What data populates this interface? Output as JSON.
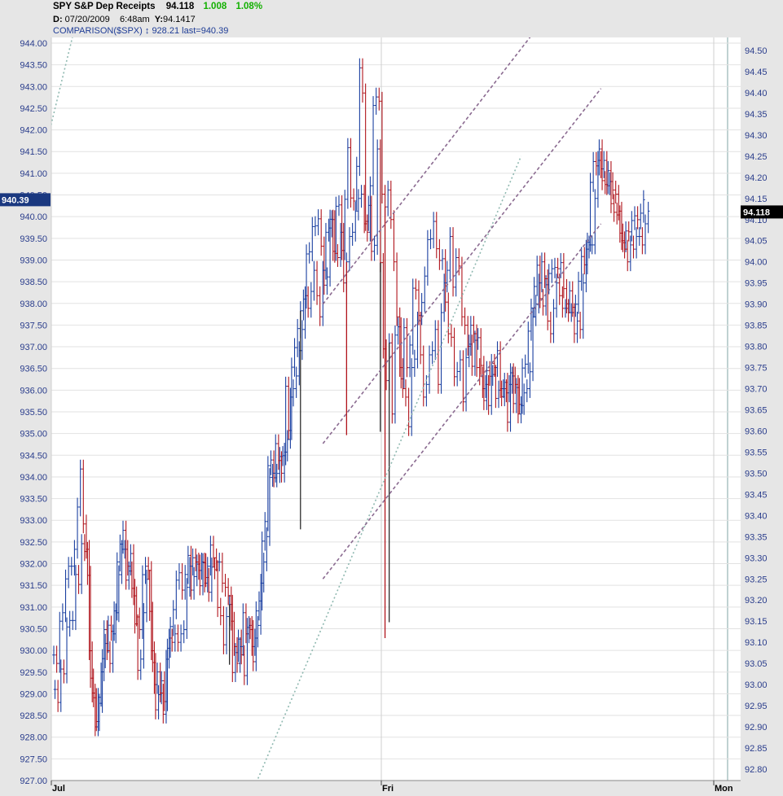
{
  "header": {
    "symbol": "SPY S&P Dep Receipts",
    "last": "94.118",
    "change": "1.008",
    "change_pct": "1.08%",
    "date_label": "D:",
    "date": "07/20/2009",
    "time": "6:48am",
    "y_label": "Y:",
    "y_value": "94.1417",
    "comparison": "COMPARISON($SPX)",
    "comparison_value": "928.21",
    "comparison_last": "last=940.39"
  },
  "left_marker": "940.39",
  "right_marker": "94.118",
  "colors": {
    "background": "#ffffff",
    "panel": "#e6e6e6",
    "grid": "#e2e2e2",
    "up_bar": "#1a3fa0",
    "down_bar": "#b0141c",
    "spx_bar": "#1a1a1a",
    "channel": "#8a6a90",
    "trend": "#8fb8b0",
    "marker_left_bg": "#1a3880",
    "marker_right_bg": "#000000"
  },
  "chart_data": {
    "type": "bar",
    "subtype": "ohlc",
    "left_axis": {
      "label": "$SPX",
      "range": [
        927.0,
        944.0
      ],
      "ticks": [
        "944.00",
        "943.50",
        "943.00",
        "942.50",
        "942.00",
        "941.50",
        "941.00",
        "940.50",
        "940.00",
        "939.50",
        "939.00",
        "938.50",
        "938.00",
        "937.50",
        "937.00",
        "936.50",
        "936.00",
        "935.50",
        "935.00",
        "934.50",
        "934.00",
        "933.50",
        "933.00",
        "932.50",
        "932.00",
        "931.50",
        "931.00",
        "930.50",
        "930.00",
        "929.50",
        "929.00",
        "928.50",
        "928.00",
        "927.50",
        "927.00"
      ]
    },
    "right_axis": {
      "label": "SPY",
      "range": [
        92.78,
        94.52
      ],
      "ticks": [
        "94.50",
        "94.45",
        "94.40",
        "94.35",
        "94.30",
        "94.25",
        "94.20",
        "94.15",
        "94.10",
        "94.05",
        "94.00",
        "93.95",
        "93.90",
        "93.85",
        "93.80",
        "93.75",
        "93.70",
        "93.65",
        "93.60",
        "93.55",
        "93.50",
        "93.45",
        "93.40",
        "93.35",
        "93.30",
        "93.25",
        "93.20",
        "93.15",
        "93.10",
        "93.05",
        "93.00",
        "92.95",
        "92.90",
        "92.85",
        "92.80"
      ]
    },
    "x_axis": {
      "ticks": [
        "Jul",
        "Fri",
        "Mon"
      ],
      "range": [
        0,
        200
      ]
    },
    "grid": true,
    "series": [
      {
        "name": "SPY",
        "axis": "right",
        "close": [
          93.07,
          93.05,
          93.15,
          93.17,
          93.25,
          93.28,
          93.28,
          93.32,
          93.42,
          93.51,
          93.38,
          93.32,
          93.08,
          92.98,
          92.9,
          92.97,
          93.03,
          93.13,
          93.08,
          93.05,
          93.12,
          93.17,
          93.26,
          93.32,
          93.32,
          93.28,
          93.31,
          93.21,
          93.16,
          93.13,
          93.26,
          93.28,
          93.27,
          93.08,
          93.0,
          93.03,
          92.98,
          92.93,
          93.06,
          93.11,
          93.1,
          93.12,
          93.1,
          93.12,
          93.13,
          93.23,
          93.28,
          93.3,
          93.29,
          93.27,
          93.29,
          93.24,
          93.28,
          93.33,
          93.3,
          93.29,
          93.29,
          93.24,
          93.23,
          93.21,
          93.15,
          93.09,
          93.05,
          93.09,
          93.17,
          93.12,
          93.14,
          93.09,
          93.11,
          93.14,
          93.24,
          93.29,
          93.35,
          93.49,
          93.5,
          93.57,
          93.53,
          93.5,
          93.55,
          93.58,
          93.68,
          93.7,
          93.73,
          93.79,
          93.84,
          93.92,
          93.89,
          93.93,
          93.98,
          93.92,
          93.87,
          93.98,
          94.07,
          94.08,
          94.1,
          94.02,
          94.01,
          94.07,
          93.95,
          94.0,
          94.06,
          94.07,
          94.12,
          94.15,
          94.16,
          94.09,
          94.07,
          94.18,
          94.37,
          94.39,
          94.38,
          94.16,
          94.13,
          94.17,
          94.1,
          94.0,
          93.87,
          93.75,
          93.7,
          93.68,
          93.61,
          93.75,
          93.77,
          93.86,
          93.78,
          93.68,
          93.71,
          93.78,
          93.79,
          93.84,
          93.71,
          93.88,
          93.95,
          93.98,
          94.06,
          93.94,
          94.01,
          93.99,
          93.87,
          93.85,
          93.8,
          93.85,
          93.83,
          93.75,
          93.73,
          93.7,
          93.71,
          93.66,
          93.76,
          93.75,
          93.79,
          93.7,
          93.7,
          93.69,
          93.71,
          93.73,
          93.71,
          93.64,
          93.66,
          93.69,
          93.7,
          93.74,
          93.87,
          93.9,
          93.95,
          94.0,
          93.96,
          93.86,
          93.83,
          93.89,
          93.95,
          93.92,
          93.89,
          93.89,
          93.88,
          93.88,
          93.83,
          93.86,
          93.84,
          93.95,
          94.03,
          94.04,
          94.04,
          94.15,
          94.24,
          94.22,
          94.24,
          94.18,
          94.19,
          94.17,
          94.16,
          94.12,
          94.05,
          94.03,
          94.0,
          94.04,
          94.03,
          94.06,
          94.06,
          94.04,
          94.09,
          94.12
        ]
      },
      {
        "name": "$SPX",
        "axis": "left",
        "close": [
          929.1,
          928.8,
          929.57,
          929.46,
          930.54,
          930.69,
          930.69,
          931.75,
          931.52,
          932.46,
          932.28,
          931.73,
          929.36,
          928.91,
          928.36,
          928.78,
          929.81,
          930.16,
          930.58,
          930.44,
          930.91,
          932.04,
          932.45,
          932.77,
          931.62,
          931.83,
          931.43,
          930.61,
          929.54,
          929.8,
          930.87,
          931.64,
          930.9,
          929.72,
          928.63,
          928.98,
          929.3,
          928.82,
          930.05,
          930.55,
          930.94,
          931.62,
          931.79,
          931.39,
          931.75,
          932.19,
          931.39,
          931.7,
          931.99,
          931.49,
          932.02,
          931.68,
          931.34,
          931.92,
          931.86,
          930.99,
          930.8,
          930.13,
          930.78,
          931.06,
          929.49,
          929.95,
          930.26,
          929.9,
          929.42,
          930.53,
          930.48,
          929.74,
          930.91,
          931.14,
          932.52,
          932.97,
          934.26,
          934.39,
          933.98,
          934.08,
          934.47,
          934.49,
          936.09,
          935.07,
          936.53,
          936.98,
          937.42,
          937.83,
          938.1,
          939.14,
          939.19,
          939.77,
          939.79,
          939.95,
          939.32,
          938.42,
          938.61,
          939.94,
          939.2,
          940.24,
          940.27,
          939.22,
          940.4,
          941.59,
          940.43,
          940.36,
          941.16,
          943.43,
          942.85,
          939.89,
          940.26,
          939.2,
          939.34,
          941.56,
          938.94,
          936.95,
          936.22,
          937.09,
          935.45,
          937.27,
          937.46,
          936.26,
          937.44,
          936.52,
          937.04,
          938.35,
          938.31,
          937.72,
          938.02,
          938.63,
          939.47,
          939.49,
          939.89,
          939.26,
          938.99,
          939.03,
          938.03,
          937.3,
          937.22,
          936.31,
          936.43,
          936.7,
          935.73,
          936.75,
          937.06,
          936.55,
          937.15,
          937.21,
          936.57,
          935.76,
          936.45,
          936.32,
          936.36,
          935.81,
          936.0,
          935.85,
          936.18,
          935.26,
          936.4,
          935.69,
          936.06,
          935.67,
          936.51,
          936.6,
          937.36,
          937.89,
          938.39,
          938.88,
          938.11,
          937.94,
          938.43,
          938.69,
          938.8,
          938.83,
          938.8,
          938.94,
          938.34,
          937.99,
          938.29,
          937.91,
          937.98,
          938.51,
          939.08,
          938.89,
          939.41,
          940.79,
          941.27,
          941.17,
          941.56,
          940.83,
          940.74,
          941.06,
          940.3,
          940.1,
          940.04,
          939.62,
          939.4,
          939.67,
          939.65,
          939.91,
          940.02,
          939.93,
          940.08,
          940.39
        ]
      }
    ],
    "spx_low_spikes": [
      {
        "x": 59,
        "low": 929.67
      },
      {
        "x": 83,
        "low": 932.79
      },
      {
        "x": 110,
        "low": 935.04
      },
      {
        "x": 113,
        "low": 930.65
      }
    ],
    "spy_low_spikes": [
      {
        "x": 99,
        "low": 93.59
      },
      {
        "x": 112,
        "low": 93.11
      }
    ],
    "trend_lines": [
      {
        "style": "dotted",
        "color": "trend",
        "axis": "right",
        "points": [
          [
            8,
            94.58
          ],
          [
            -22,
            93.72
          ]
        ]
      },
      {
        "style": "dotted",
        "color": "trend",
        "axis": "right",
        "points": [
          [
            68,
            92.76
          ],
          [
            158,
            94.25
          ]
        ]
      }
    ],
    "channels": [
      {
        "style": "dashed",
        "axis": "right",
        "points": [
          [
            91,
            93.9
          ],
          [
            162,
            94.54
          ]
        ]
      },
      {
        "style": "dashed",
        "axis": "right",
        "points": [
          [
            91,
            93.57
          ],
          [
            185,
            94.41
          ]
        ]
      },
      {
        "style": "dashed",
        "axis": "right",
        "points": [
          [
            91,
            93.25
          ],
          [
            185,
            94.09
          ]
        ]
      }
    ]
  }
}
